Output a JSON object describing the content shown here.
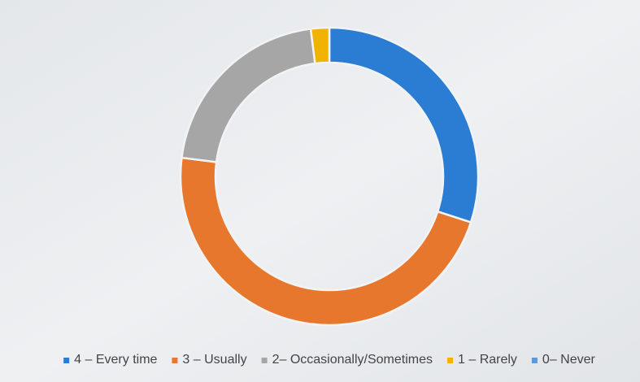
{
  "chart_data": {
    "type": "donut",
    "categories": [
      "4 – Every time",
      "3 – Usually",
      "2– Occasionally/Sometimes",
      "1 – Rarely",
      "0– Never"
    ],
    "values": [
      30,
      47,
      21,
      2,
      0
    ],
    "colors": [
      "#2b7cd3",
      "#e8772e",
      "#a6a6a6",
      "#f0b400",
      "#5b9bd5"
    ],
    "legend": "bottom"
  }
}
